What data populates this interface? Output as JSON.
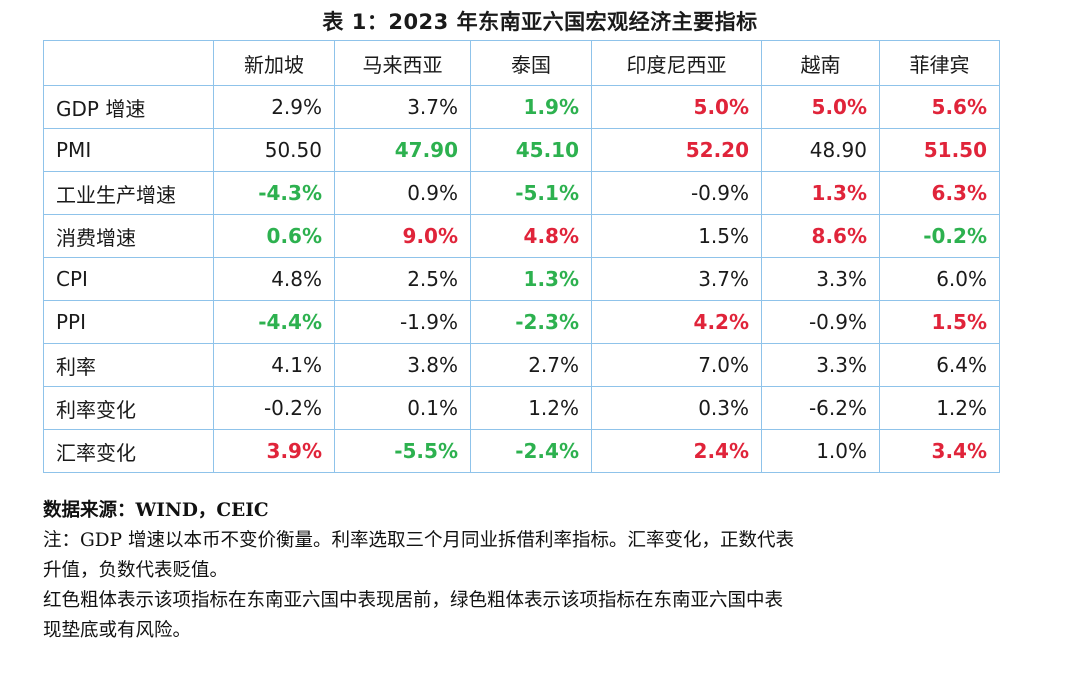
{
  "title": "表 1：2023 年东南亚六国宏观经济主要指标",
  "header": [
    "",
    "新加坡",
    "马来西亚",
    "泰国",
    "印度尼西亚",
    "越南",
    "菲律宾"
  ],
  "rows": [
    {
      "label": "GDP 增速",
      "cells": [
        {
          "v": "2.9%",
          "c": ""
        },
        {
          "v": "3.7%",
          "c": ""
        },
        {
          "v": "1.9%",
          "c": "green"
        },
        {
          "v": "5.0%",
          "c": "red"
        },
        {
          "v": "5.0%",
          "c": "red"
        },
        {
          "v": "5.6%",
          "c": "red"
        }
      ]
    },
    {
      "label": "PMI",
      "cells": [
        {
          "v": "50.50",
          "c": ""
        },
        {
          "v": "47.90",
          "c": "green"
        },
        {
          "v": "45.10",
          "c": "green"
        },
        {
          "v": "52.20",
          "c": "red"
        },
        {
          "v": "48.90",
          "c": ""
        },
        {
          "v": "51.50",
          "c": "red"
        }
      ]
    },
    {
      "label": "工业生产增速",
      "cells": [
        {
          "v": "-4.3%",
          "c": "green"
        },
        {
          "v": "0.9%",
          "c": ""
        },
        {
          "v": "-5.1%",
          "c": "green"
        },
        {
          "v": "-0.9%",
          "c": ""
        },
        {
          "v": "1.3%",
          "c": "red"
        },
        {
          "v": "6.3%",
          "c": "red"
        }
      ]
    },
    {
      "label": "消费增速",
      "cells": [
        {
          "v": "0.6%",
          "c": "green"
        },
        {
          "v": "9.0%",
          "c": "red"
        },
        {
          "v": "4.8%",
          "c": "red"
        },
        {
          "v": "1.5%",
          "c": ""
        },
        {
          "v": "8.6%",
          "c": "red"
        },
        {
          "v": "-0.2%",
          "c": "green"
        }
      ]
    },
    {
      "label": "CPI",
      "cells": [
        {
          "v": "4.8%",
          "c": ""
        },
        {
          "v": "2.5%",
          "c": ""
        },
        {
          "v": "1.3%",
          "c": "green"
        },
        {
          "v": "3.7%",
          "c": ""
        },
        {
          "v": "3.3%",
          "c": ""
        },
        {
          "v": "6.0%",
          "c": ""
        }
      ]
    },
    {
      "label": "PPI",
      "cells": [
        {
          "v": "-4.4%",
          "c": "green"
        },
        {
          "v": "-1.9%",
          "c": ""
        },
        {
          "v": "-2.3%",
          "c": "green"
        },
        {
          "v": "4.2%",
          "c": "red"
        },
        {
          "v": "-0.9%",
          "c": ""
        },
        {
          "v": "1.5%",
          "c": "red"
        }
      ]
    },
    {
      "label": "利率",
      "cells": [
        {
          "v": "4.1%",
          "c": ""
        },
        {
          "v": "3.8%",
          "c": ""
        },
        {
          "v": "2.7%",
          "c": ""
        },
        {
          "v": "7.0%",
          "c": ""
        },
        {
          "v": "3.3%",
          "c": ""
        },
        {
          "v": "6.4%",
          "c": ""
        }
      ]
    },
    {
      "label": "利率变化",
      "cells": [
        {
          "v": "-0.2%",
          "c": ""
        },
        {
          "v": "0.1%",
          "c": ""
        },
        {
          "v": "1.2%",
          "c": ""
        },
        {
          "v": "0.3%",
          "c": ""
        },
        {
          "v": "-6.2%",
          "c": ""
        },
        {
          "v": "1.2%",
          "c": ""
        }
      ]
    },
    {
      "label": "汇率变化",
      "cells": [
        {
          "v": "3.9%",
          "c": "red"
        },
        {
          "v": "-5.5%",
          "c": "green"
        },
        {
          "v": "-2.4%",
          "c": "green"
        },
        {
          "v": "2.4%",
          "c": "red"
        },
        {
          "v": "1.0%",
          "c": ""
        },
        {
          "v": "3.4%",
          "c": "red"
        }
      ]
    }
  ],
  "notes": {
    "source": "数据来源：WIND，CEIC",
    "note1_line1": "注：GDP 增速以本币不变价衡量。利率选取三个月同业拆借利率指标。汇率变化，正数代表",
    "note1_line2": "升值，负数代表贬值。",
    "note2_line1": "红色粗体表示该项指标在东南亚六国中表现居前，绿色粗体表示该项指标在东南亚六国中表",
    "note2_line2": "现垫底或有风险。"
  },
  "colors": {
    "red": "#e0243a",
    "green": "#2db14f",
    "border": "#8fc3ea"
  }
}
